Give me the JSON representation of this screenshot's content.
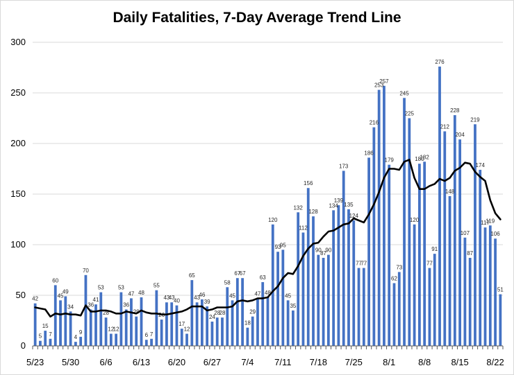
{
  "chart_data": {
    "type": "bar",
    "title": "Daily Fatalities, 7-Day Average Trend Line",
    "xlabel": "",
    "ylabel": "",
    "ylim": [
      0,
      300
    ],
    "yticks": [
      0,
      50,
      100,
      150,
      200,
      250,
      300
    ],
    "grid": true,
    "legend": "none",
    "x_tick_labels": [
      {
        "index": 0,
        "label": "5/23"
      },
      {
        "index": 7,
        "label": "5/30"
      },
      {
        "index": 14,
        "label": "6/6"
      },
      {
        "index": 21,
        "label": "6/13"
      },
      {
        "index": 28,
        "label": "6/20"
      },
      {
        "index": 35,
        "label": "6/27"
      },
      {
        "index": 42,
        "label": "7/4"
      },
      {
        "index": 49,
        "label": "7/11"
      },
      {
        "index": 56,
        "label": "7/18"
      },
      {
        "index": 63,
        "label": "7/25"
      },
      {
        "index": 70,
        "label": "8/1"
      },
      {
        "index": 77,
        "label": "8/8"
      },
      {
        "index": 84,
        "label": "8/15"
      },
      {
        "index": 91,
        "label": "8/22"
      }
    ],
    "bar_color": "#4472C4",
    "line_color": "#000000",
    "series": [
      {
        "type": "bar",
        "values": [
          42,
          5,
          15,
          7,
          60,
          45,
          49,
          34,
          4,
          9,
          70,
          36,
          41,
          53,
          28,
          12,
          12,
          53,
          36,
          47,
          29,
          48,
          6,
          7,
          55,
          26,
          43,
          43,
          40,
          17,
          12,
          65,
          43,
          46,
          39,
          24,
          28,
          28,
          58,
          45,
          67,
          67,
          18,
          29,
          47,
          63,
          48,
          120,
          93,
          95,
          45,
          35,
          132,
          112,
          156,
          128,
          90,
          87,
          90,
          134,
          139,
          173,
          135,
          124,
          77,
          77,
          186,
          216,
          253,
          257,
          179,
          62,
          73,
          245,
          225,
          120,
          180,
          182,
          77,
          91,
          276,
          212,
          148,
          228,
          204,
          107,
          87,
          219,
          174,
          117,
          119,
          106,
          51
        ]
      },
      {
        "type": "line",
        "values": [
          38,
          37,
          36,
          29,
          32,
          31,
          32,
          31,
          31,
          30,
          40,
          34,
          34,
          35,
          35,
          34,
          32,
          32,
          34,
          33,
          32,
          35,
          33,
          32,
          32,
          31,
          31,
          32,
          33,
          34,
          36,
          39,
          39,
          39,
          35,
          36,
          38,
          38,
          38,
          39,
          44,
          45,
          44,
          45,
          47,
          47,
          48,
          54,
          59,
          67,
          72,
          71,
          79,
          89,
          96,
          101,
          102,
          108,
          113,
          114,
          117,
          120,
          121,
          126,
          124,
          122,
          130,
          140,
          152,
          166,
          175,
          175,
          174,
          182,
          184,
          166,
          155,
          155,
          158,
          160,
          165,
          163,
          166,
          173,
          176,
          181,
          180,
          172,
          167,
          163,
          144,
          131,
          125
        ]
      }
    ]
  }
}
